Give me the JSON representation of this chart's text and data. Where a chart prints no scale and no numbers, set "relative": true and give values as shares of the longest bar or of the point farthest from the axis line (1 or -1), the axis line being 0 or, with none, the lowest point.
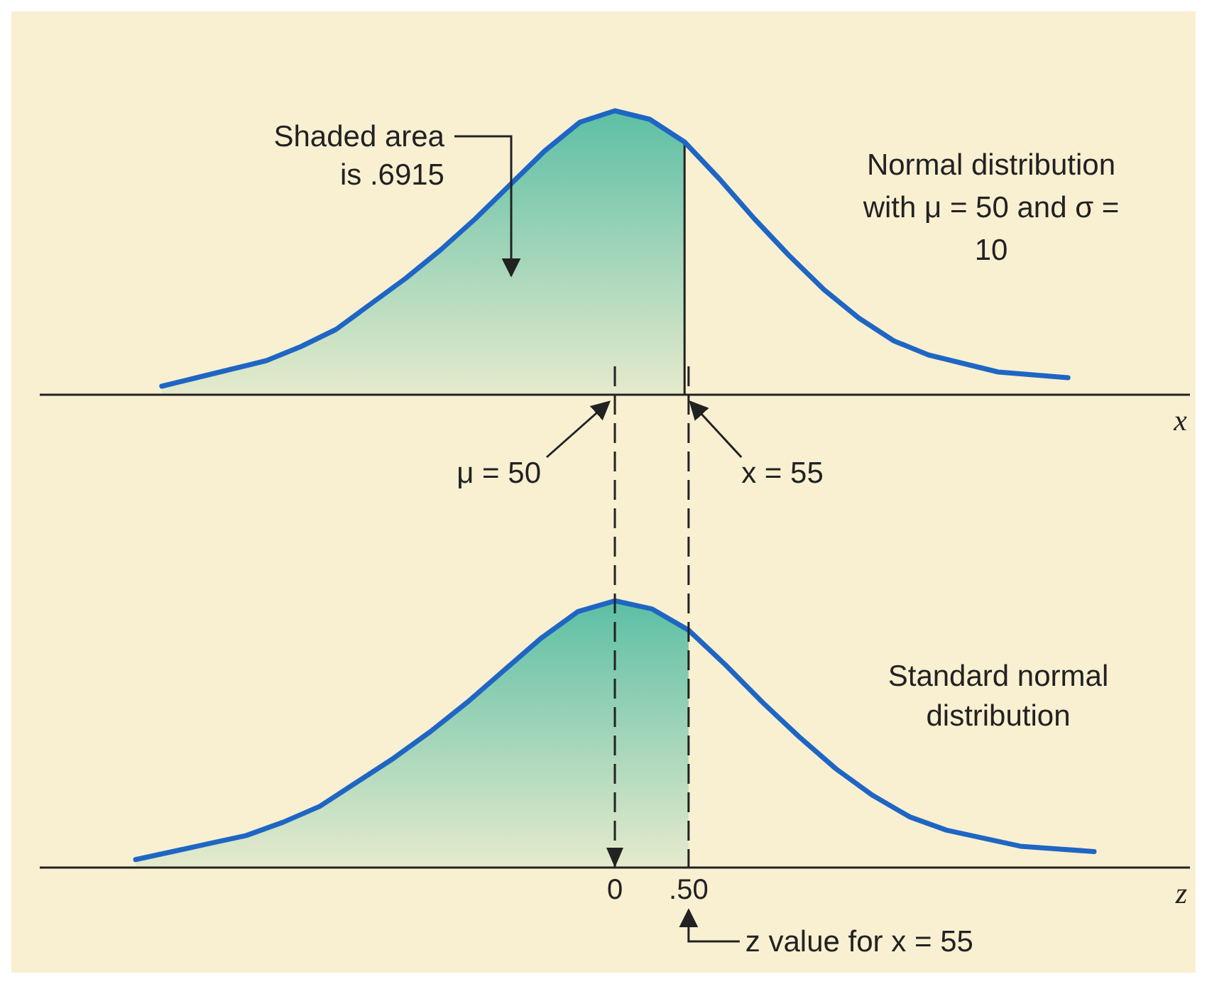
{
  "chart_data": [
    {
      "type": "line",
      "relative": true,
      "xlabel": "x",
      "categories": [
        null,
        null,
        null,
        null,
        null,
        null,
        null,
        null,
        null,
        null,
        null,
        null,
        null,
        null,
        null,
        null,
        null,
        null,
        null,
        null,
        null,
        null,
        null,
        null,
        null,
        null,
        null,
        null,
        null,
        null,
        null,
        null,
        null
      ],
      "series": [
        {
          "type": "area",
          "color": "#5cbfa5",
          "values": [
            null,
            null,
            null,
            0.03,
            0.06,
            0.09,
            0.12,
            0.17,
            0.23,
            0.32,
            0.41,
            0.51,
            0.62,
            0.74,
            0.86,
            0.96,
            1,
            0.97,
            0.89,
            null,
            null,
            null,
            null,
            null,
            null,
            null,
            null,
            null,
            null,
            null,
            null,
            null,
            null
          ]
        },
        {
          "color": "#1f66c4",
          "values": [
            null,
            null,
            null,
            0.03,
            0.06,
            0.09,
            0.12,
            0.17,
            0.23,
            0.32,
            0.41,
            0.51,
            0.62,
            0.74,
            0.86,
            0.96,
            1,
            0.97,
            0.89,
            0.76,
            0.62,
            0.49,
            0.37,
            0.27,
            0.19,
            0.14,
            0.11,
            0.08,
            0.07,
            0.06,
            null,
            null,
            null
          ]
        }
      ],
      "annotations": [
        "Shaded area is .6915",
        "Normal distribution with μ = 50 and σ = 10",
        "μ = 50",
        "x = 55"
      ]
    },
    {
      "type": "line",
      "relative": true,
      "xlim": [
        -3.9,
        3.9
      ],
      "xticks": [
        0,
        {
          "value": 0.5,
          "label": ".50"
        }
      ],
      "xlabel": "z",
      "series": [
        {
          "type": "area",
          "color": "#5cbfa5",
          "x": [
            -3.25,
            -3,
            -2.75,
            -2.5,
            -2.25,
            -2,
            -1.75,
            -1.5,
            -1.25,
            -1,
            -0.75,
            -0.5,
            -0.25,
            0,
            0.25,
            0.5
          ],
          "values": [
            0.03,
            0.06,
            0.09,
            0.12,
            0.17,
            0.23,
            0.32,
            0.41,
            0.51,
            0.62,
            0.74,
            0.86,
            0.96,
            1,
            0.97,
            0.89
          ]
        },
        {
          "color": "#1f66c4",
          "x": [
            -3.25,
            -3,
            -2.75,
            -2.5,
            -2.25,
            -2,
            -1.75,
            -1.5,
            -1.25,
            -1,
            -0.75,
            -0.5,
            -0.25,
            0,
            0.25,
            0.5,
            0.75,
            1,
            1.25,
            1.5,
            1.75,
            2,
            2.25,
            2.5,
            2.75,
            3,
            3.25
          ],
          "values": [
            0.03,
            0.06,
            0.09,
            0.12,
            0.17,
            0.23,
            0.32,
            0.41,
            0.51,
            0.62,
            0.74,
            0.86,
            0.96,
            1,
            0.97,
            0.89,
            0.76,
            0.62,
            0.49,
            0.37,
            0.27,
            0.19,
            0.14,
            0.11,
            0.08,
            0.07,
            0.06
          ]
        }
      ],
      "ref_lines": [
        {
          "axis": "x",
          "value": 0,
          "line_style": "dashed"
        },
        {
          "axis": "x",
          "value": 0.5,
          "line_style": "dashed"
        }
      ],
      "annotations": [
        "Standard normal distribution",
        {
          "text": "z value for x = 55",
          "x": 0.5,
          "y": 0
        }
      ]
    }
  ]
}
